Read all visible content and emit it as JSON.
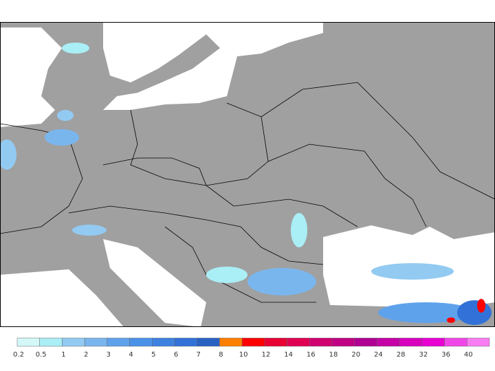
{
  "legend": {
    "labels": [
      0.2,
      0.5,
      1,
      2,
      3,
      4,
      5,
      6,
      7,
      8,
      10,
      12,
      14,
      16,
      18,
      20,
      24,
      28,
      32,
      36,
      40
    ],
    "colors": [
      "#d4f8f8",
      "#aaeef6",
      "#92caf2",
      "#7ab6ee",
      "#5ea2ec",
      "#4a92e8",
      "#3e82e0",
      "#3272d8",
      "#2a62c2",
      "#ff8000",
      "#ff0000",
      "#e80034",
      "#e00052",
      "#d00070",
      "#c00084",
      "#b00094",
      "#c400a6",
      "#d800bc",
      "#e800d2",
      "#f046e8",
      "#f87cf2"
    ]
  }
}
